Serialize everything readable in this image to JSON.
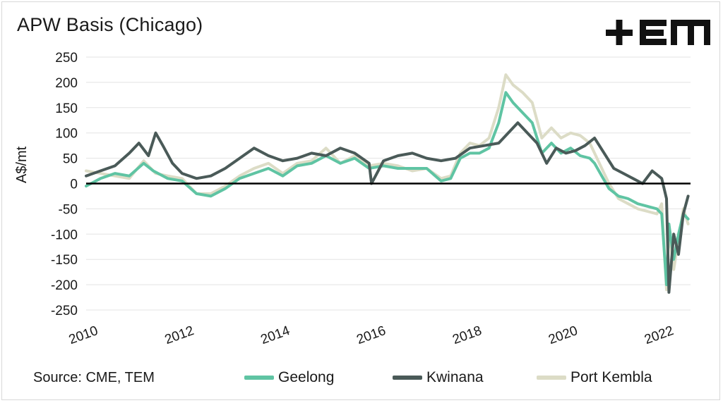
{
  "header": {
    "title": "APW Basis (Chicago)"
  },
  "logo": {
    "alt": "TEM"
  },
  "footer": {
    "source": "Source: CME, TEM"
  },
  "colors": {
    "Geelong": "#5fc4a3",
    "Kwinana": "#4a5a58",
    "Port Kembla": "#dcdcc6",
    "zero_line": "#000000",
    "grid": "#e3e3e3",
    "logo": "#111111"
  },
  "chart_data": {
    "type": "line",
    "title": "APW Basis (Chicago)",
    "xlabel": "",
    "ylabel": "A$/mt",
    "xlim": [
      2010,
      2022.6
    ],
    "ylim": [
      -250,
      250
    ],
    "x_ticks": [
      "2010",
      "2012",
      "2014",
      "2016",
      "2018",
      "2020",
      "2022"
    ],
    "y_ticks": [
      250,
      200,
      150,
      100,
      50,
      0,
      -50,
      -100,
      -150,
      -200,
      -250
    ],
    "grid": "horizontal",
    "legend": "bottom",
    "series": [
      {
        "name": "Geelong",
        "x": [
          2010.0,
          2010.3,
          2010.6,
          2010.9,
          2011.2,
          2011.4,
          2011.7,
          2012.0,
          2012.3,
          2012.6,
          2012.9,
          2013.2,
          2013.5,
          2013.8,
          2014.1,
          2014.4,
          2014.7,
          2015.0,
          2015.3,
          2015.6,
          2015.9,
          2016.2,
          2016.5,
          2016.8,
          2017.1,
          2017.4,
          2017.6,
          2017.8,
          2018.0,
          2018.2,
          2018.4,
          2018.6,
          2018.75,
          2018.9,
          2019.1,
          2019.3,
          2019.5,
          2019.7,
          2019.9,
          2020.1,
          2020.3,
          2020.5,
          2020.6,
          2020.75,
          2020.9,
          2021.1,
          2021.3,
          2021.5,
          2021.7,
          2021.9,
          2022.0,
          2022.1,
          2022.15,
          2022.25,
          2022.35,
          2022.45,
          2022.55
        ],
        "values": [
          -5,
          10,
          20,
          15,
          40,
          25,
          10,
          5,
          -20,
          -25,
          -10,
          10,
          20,
          30,
          15,
          35,
          40,
          55,
          40,
          50,
          30,
          35,
          30,
          30,
          30,
          5,
          10,
          50,
          60,
          60,
          70,
          120,
          180,
          160,
          140,
          120,
          60,
          80,
          60,
          70,
          55,
          50,
          40,
          15,
          -10,
          -25,
          -30,
          -40,
          -45,
          -50,
          -60,
          -200,
          -80,
          -150,
          -100,
          -60,
          -70
        ]
      },
      {
        "name": "Kwinana",
        "x": [
          2010.0,
          2010.3,
          2010.6,
          2010.9,
          2011.1,
          2011.3,
          2011.45,
          2011.6,
          2011.8,
          2012.0,
          2012.3,
          2012.6,
          2012.9,
          2013.2,
          2013.5,
          2013.8,
          2014.1,
          2014.4,
          2014.7,
          2015.0,
          2015.3,
          2015.6,
          2015.9,
          2015.95,
          2016.2,
          2016.5,
          2016.8,
          2017.1,
          2017.4,
          2017.7,
          2018.0,
          2018.3,
          2018.6,
          2018.8,
          2019.0,
          2019.2,
          2019.4,
          2019.6,
          2019.8,
          2020.0,
          2020.2,
          2020.4,
          2020.6,
          2020.8,
          2021.0,
          2021.2,
          2021.4,
          2021.6,
          2021.8,
          2022.0,
          2022.1,
          2022.15,
          2022.25,
          2022.35,
          2022.45,
          2022.55
        ],
        "values": [
          15,
          25,
          35,
          60,
          80,
          55,
          100,
          75,
          40,
          20,
          10,
          15,
          30,
          50,
          70,
          55,
          45,
          50,
          60,
          55,
          70,
          60,
          40,
          0,
          45,
          55,
          60,
          50,
          45,
          50,
          70,
          75,
          80,
          100,
          120,
          100,
          80,
          40,
          70,
          60,
          65,
          75,
          90,
          60,
          30,
          20,
          10,
          0,
          25,
          10,
          -30,
          -215,
          -100,
          -140,
          -60,
          -25
        ]
      },
      {
        "name": "Port Kembla",
        "x": [
          2010.0,
          2010.3,
          2010.6,
          2010.9,
          2011.2,
          2011.45,
          2011.7,
          2012.0,
          2012.3,
          2012.6,
          2012.9,
          2013.2,
          2013.5,
          2013.8,
          2014.1,
          2014.4,
          2014.7,
          2015.0,
          2015.3,
          2015.6,
          2015.9,
          2016.2,
          2016.5,
          2016.8,
          2017.1,
          2017.4,
          2017.6,
          2017.8,
          2018.0,
          2018.2,
          2018.4,
          2018.6,
          2018.75,
          2018.9,
          2019.1,
          2019.3,
          2019.5,
          2019.7,
          2019.9,
          2020.1,
          2020.3,
          2020.5,
          2020.6,
          2020.75,
          2020.9,
          2021.1,
          2021.3,
          2021.5,
          2021.7,
          2021.9,
          2022.0,
          2022.1,
          2022.15,
          2022.25,
          2022.35,
          2022.45,
          2022.55
        ],
        "values": [
          25,
          20,
          15,
          10,
          45,
          20,
          15,
          10,
          -20,
          -20,
          -5,
          15,
          30,
          40,
          20,
          40,
          45,
          70,
          40,
          55,
          35,
          40,
          35,
          25,
          30,
          10,
          15,
          60,
          80,
          75,
          90,
          150,
          215,
          195,
          180,
          160,
          90,
          110,
          90,
          100,
          95,
          80,
          60,
          30,
          0,
          -30,
          -40,
          -50,
          -55,
          -60,
          -40,
          -210,
          -90,
          -170,
          -110,
          -50,
          -80
        ]
      }
    ]
  }
}
